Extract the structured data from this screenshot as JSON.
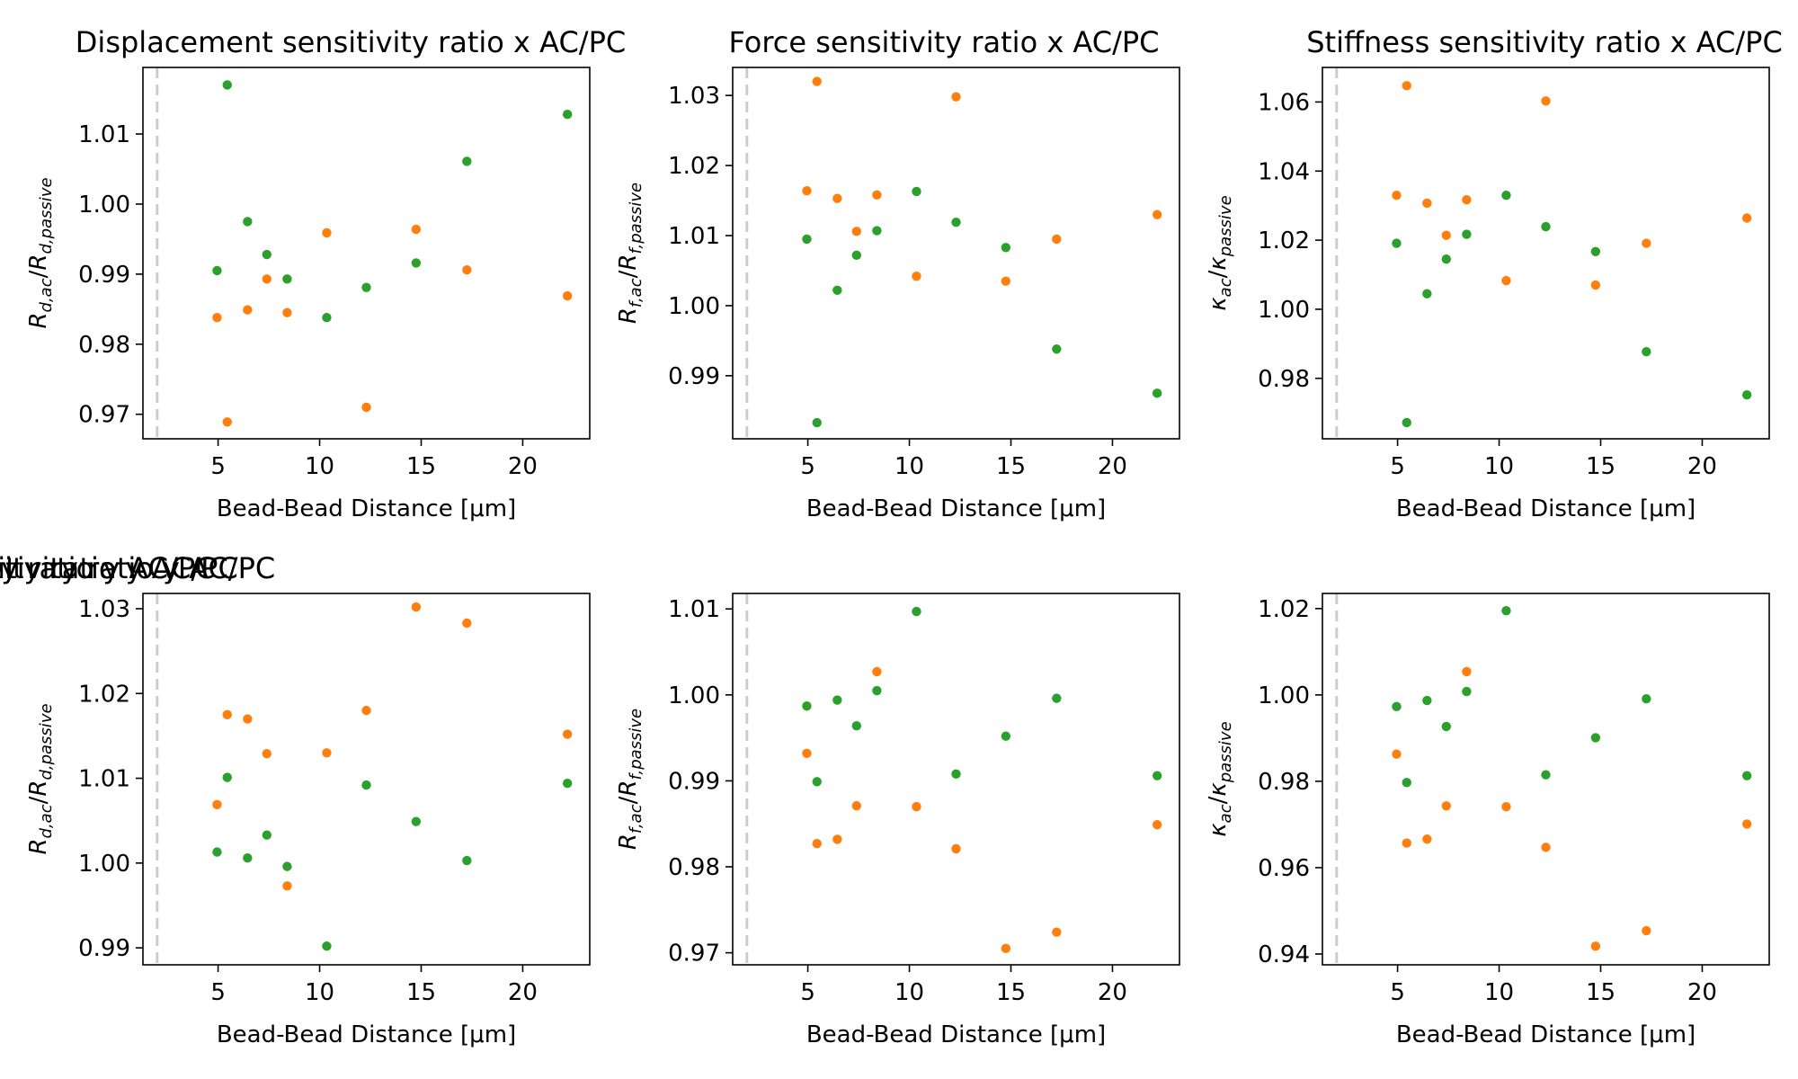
{
  "colors": {
    "green": "#2ca02c",
    "orange": "#ff7f0e",
    "vline": "#cccccc"
  },
  "chart_data": [
    {
      "type": "scatter",
      "title": "Displacement sensitivity ratio x AC/PC",
      "xlabel": "Bead-Bead Distance [μm]",
      "ylabel": {
        "base": "R",
        "sub": "d,ac",
        "base2": "R",
        "sub2": "d,passive"
      },
      "xlim": [
        1.3,
        23.3
      ],
      "ylim": [
        0.9665,
        1.0195
      ],
      "xticks": [
        5,
        10,
        15,
        20
      ],
      "yticks": [
        0.97,
        0.98,
        0.99,
        1.0,
        1.01
      ],
      "ytick_labels": [
        "0.97",
        "0.98",
        "0.99",
        "1.00",
        "1.01"
      ],
      "vline_x": 2.0,
      "series": [
        {
          "color": "#2ca02c",
          "x": [
            4.95,
            5.45,
            6.45,
            7.4,
            8.4,
            10.35,
            12.3,
            14.75,
            17.25,
            22.2
          ],
          "y": [
            0.9905,
            1.017,
            0.9975,
            0.9928,
            0.9893,
            0.9838,
            0.9881,
            0.9916,
            1.0061,
            1.0128
          ]
        },
        {
          "color": "#ff7f0e",
          "x": [
            4.95,
            5.45,
            6.45,
            7.4,
            8.4,
            10.35,
            12.3,
            14.75,
            17.25,
            22.2
          ],
          "y": [
            0.9838,
            0.9689,
            0.9849,
            0.9893,
            0.9845,
            0.9959,
            0.971,
            0.9964,
            0.9906,
            0.9869
          ]
        }
      ]
    },
    {
      "type": "scatter",
      "title": "Force sensitivity ratio x AC/PC",
      "xlabel": "Bead-Bead Distance [μm]",
      "ylabel": {
        "base": "R",
        "sub": "f,ac",
        "base2": "R",
        "sub2": "f,passive"
      },
      "xlim": [
        1.3,
        23.3
      ],
      "ylim": [
        0.981,
        1.034
      ],
      "xticks": [
        5,
        10,
        15,
        20
      ],
      "yticks": [
        0.99,
        1.0,
        1.01,
        1.02,
        1.03
      ],
      "ytick_labels": [
        "0.99",
        "1.00",
        "1.01",
        "1.02",
        "1.03"
      ],
      "vline_x": 2.0,
      "series": [
        {
          "color": "#2ca02c",
          "x": [
            4.95,
            5.45,
            6.45,
            7.4,
            8.4,
            10.35,
            12.3,
            14.75,
            17.25,
            22.2
          ],
          "y": [
            1.0095,
            0.9833,
            1.0022,
            1.0072,
            1.0107,
            1.0163,
            1.0119,
            1.0083,
            0.9938,
            0.9875
          ]
        },
        {
          "color": "#ff7f0e",
          "x": [
            4.95,
            5.45,
            6.45,
            7.4,
            8.4,
            10.35,
            12.3,
            14.75,
            17.25,
            22.2
          ],
          "y": [
            1.0164,
            1.032,
            1.0153,
            1.0106,
            1.0158,
            1.0042,
            1.0298,
            1.0035,
            1.0095,
            1.013
          ]
        }
      ]
    },
    {
      "type": "scatter",
      "title": "Stiffness sensitivity ratio x AC/PC",
      "xlabel": "Bead-Bead Distance [μm]",
      "ylabel": {
        "base": "κ",
        "sub": "ac",
        "base2": "κ",
        "sub2": "passive"
      },
      "xlim": [
        1.3,
        23.3
      ],
      "ylim": [
        0.9625,
        1.07
      ],
      "xticks": [
        5,
        10,
        15,
        20
      ],
      "yticks": [
        0.98,
        1.0,
        1.02,
        1.04,
        1.06
      ],
      "ytick_labels": [
        "0.98",
        "1.00",
        "1.02",
        "1.04",
        "1.06"
      ],
      "vline_x": 2.0,
      "series": [
        {
          "color": "#2ca02c",
          "x": [
            4.95,
            5.45,
            6.45,
            7.4,
            8.4,
            10.35,
            12.3,
            14.75,
            17.25,
            22.2
          ],
          "y": [
            1.0191,
            0.9672,
            1.0045,
            1.0145,
            1.0217,
            1.033,
            1.0239,
            1.0167,
            0.9877,
            0.9752
          ]
        },
        {
          "color": "#ff7f0e",
          "x": [
            4.95,
            5.45,
            6.45,
            7.4,
            8.4,
            10.35,
            12.3,
            14.75,
            17.25,
            22.2
          ],
          "y": [
            1.033,
            1.0647,
            1.0307,
            1.0214,
            1.0317,
            1.0083,
            1.0603,
            1.007,
            1.0191,
            1.0264
          ]
        }
      ]
    },
    {
      "type": "scatter",
      "title": "Displacement sensitivity ratio y AC/PC",
      "xlabel": "Bead-Bead Distance [μm]",
      "ylabel": {
        "base": "R",
        "sub": "d,ac",
        "base2": "R",
        "sub2": "d,passive"
      },
      "xlim": [
        1.3,
        23.3
      ],
      "ylim": [
        0.988,
        1.0318
      ],
      "xticks": [
        5,
        10,
        15,
        20
      ],
      "yticks": [
        0.99,
        1.0,
        1.01,
        1.02,
        1.03
      ],
      "ytick_labels": [
        "0.99",
        "1.00",
        "1.01",
        "1.02",
        "1.03"
      ],
      "vline_x": 2.0,
      "series": [
        {
          "color": "#2ca02c",
          "x": [
            4.95,
            5.45,
            6.45,
            7.4,
            8.4,
            10.35,
            12.3,
            14.75,
            17.25,
            22.2
          ],
          "y": [
            1.0013,
            1.0101,
            1.0006,
            1.0033,
            0.9996,
            0.9902,
            1.0092,
            1.0049,
            1.0003,
            1.0094
          ]
        },
        {
          "color": "#ff7f0e",
          "x": [
            4.95,
            5.45,
            6.45,
            7.4,
            8.4,
            10.35,
            12.3,
            14.75,
            17.25,
            22.2
          ],
          "y": [
            1.0069,
            1.0175,
            1.017,
            1.0129,
            0.9973,
            1.013,
            1.018,
            1.0302,
            1.0283,
            1.0152
          ]
        }
      ]
    },
    {
      "type": "scatter",
      "title": "Force sensitivity ratio y AC/PC",
      "xlabel": "Bead-Bead Distance [μm]",
      "ylabel": {
        "base": "R",
        "sub": "f,ac",
        "base2": "R",
        "sub2": "f,passive"
      },
      "xlim": [
        1.3,
        23.3
      ],
      "ylim": [
        0.9686,
        1.0118
      ],
      "xticks": [
        5,
        10,
        15,
        20
      ],
      "yticks": [
        0.97,
        0.98,
        0.99,
        1.0,
        1.01
      ],
      "ytick_labels": [
        "0.97",
        "0.98",
        "0.99",
        "1.00",
        "1.01"
      ],
      "vline_x": 2.0,
      "series": [
        {
          "color": "#2ca02c",
          "x": [
            4.95,
            5.45,
            6.45,
            7.4,
            8.4,
            10.35,
            12.3,
            14.75,
            17.25,
            22.2
          ],
          "y": [
            0.9987,
            0.9899,
            0.9994,
            0.9964,
            1.0005,
            1.0097,
            0.9908,
            0.9952,
            0.9996,
            0.9906
          ]
        },
        {
          "color": "#ff7f0e",
          "x": [
            4.95,
            5.45,
            6.45,
            7.4,
            8.4,
            10.35,
            12.3,
            14.75,
            17.25,
            22.2
          ],
          "y": [
            0.9932,
            0.9827,
            0.9832,
            0.9871,
            1.0027,
            0.987,
            0.9821,
            0.9705,
            0.9724,
            0.9849
          ]
        }
      ]
    },
    {
      "type": "scatter",
      "title": "Stiffness sensitivity ratio y AC/PC",
      "xlabel": "Bead-Bead Distance [μm]",
      "ylabel": {
        "base": "κ",
        "sub": "ac",
        "base2": "κ",
        "sub2": "passive"
      },
      "xlim": [
        1.3,
        23.3
      ],
      "ylim": [
        0.9375,
        1.0235
      ],
      "xticks": [
        5,
        10,
        15,
        20
      ],
      "yticks": [
        0.94,
        0.96,
        0.98,
        1.0,
        1.02
      ],
      "ytick_labels": [
        "0.94",
        "0.96",
        "0.98",
        "1.00",
        "1.02"
      ],
      "vline_x": 2.0,
      "series": [
        {
          "color": "#2ca02c",
          "x": [
            4.95,
            5.45,
            6.45,
            7.4,
            8.4,
            10.35,
            12.3,
            14.75,
            17.25,
            22.2
          ],
          "y": [
            0.9973,
            0.9797,
            0.9987,
            0.9927,
            1.0008,
            1.0195,
            0.9815,
            0.9901,
            0.9991,
            0.9813
          ]
        },
        {
          "color": "#ff7f0e",
          "x": [
            4.95,
            5.45,
            6.45,
            7.4,
            8.4,
            10.35,
            12.3,
            14.75,
            17.25,
            22.2
          ],
          "y": [
            0.9863,
            0.9657,
            0.9666,
            0.9743,
            1.0054,
            0.9741,
            0.9647,
            0.9418,
            0.9454,
            0.9701
          ]
        }
      ]
    }
  ]
}
